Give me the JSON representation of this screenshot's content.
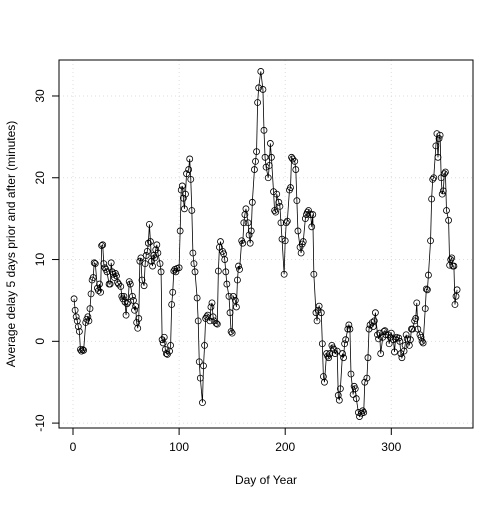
{
  "chart_data": {
    "type": "line",
    "x_label": "Day of Year",
    "y_label": "Average delay 5 days prior and after (minutes)",
    "x": [
      1,
      2,
      3,
      4,
      5,
      6,
      7,
      8,
      9,
      10,
      12,
      13,
      14,
      15,
      16,
      17,
      18,
      19,
      20,
      21,
      23,
      24,
      25,
      26,
      27,
      28,
      29,
      30,
      31,
      32,
      34,
      35,
      36,
      37,
      38,
      39,
      40,
      41,
      42,
      43,
      45,
      46,
      47,
      48,
      49,
      50,
      51,
      52,
      53,
      54,
      56,
      57,
      58,
      59,
      60,
      61,
      62,
      63,
      64,
      65,
      67,
      68,
      69,
      70,
      71,
      72,
      73,
      74,
      75,
      76,
      77,
      78,
      79,
      80,
      82,
      83,
      84,
      85,
      86,
      87,
      88,
      89,
      91,
      92,
      93,
      94,
      95,
      96,
      97,
      98,
      100,
      101,
      102,
      103,
      104,
      105,
      106,
      107,
      109,
      110,
      111,
      112,
      113,
      114,
      115,
      117,
      118,
      119,
      120,
      122,
      123,
      124,
      125,
      126,
      127,
      129,
      130,
      131,
      132,
      133,
      135,
      136,
      137,
      138,
      139,
      141,
      142,
      143,
      144,
      145,
      147,
      148,
      149,
      150,
      151,
      153,
      154,
      155,
      156,
      157,
      159,
      160,
      161,
      162,
      163,
      165,
      166,
      167,
      168,
      169,
      171,
      172,
      173,
      174,
      175,
      177,
      179,
      180,
      181,
      182,
      184,
      185,
      186,
      187,
      189,
      190,
      191,
      192,
      194,
      195,
      196,
      197,
      199,
      200,
      201,
      202,
      204,
      205,
      206,
      207,
      209,
      210,
      211,
      212,
      214,
      215,
      216,
      217,
      219,
      220,
      221,
      222,
      224,
      225,
      226,
      227,
      229,
      230,
      231,
      232,
      234,
      235,
      236,
      237,
      239,
      240,
      241,
      242,
      244,
      245,
      246,
      247,
      249,
      250,
      251,
      252,
      254,
      255,
      256,
      257,
      259,
      260,
      261,
      262,
      264,
      265,
      266,
      267,
      269,
      270,
      272,
      273,
      274,
      275,
      277,
      278,
      279,
      280,
      282,
      283,
      284,
      285,
      287,
      288,
      289,
      290,
      292,
      293,
      294,
      295,
      297,
      298,
      299,
      300,
      302,
      303,
      304,
      305,
      307,
      308,
      309,
      310,
      312,
      313,
      314,
      315,
      317,
      318,
      319,
      320,
      322,
      323,
      324,
      325,
      327,
      328,
      329,
      330,
      332,
      333,
      334,
      335,
      337,
      338,
      339,
      340,
      342,
      343,
      344,
      345,
      346,
      347,
      348,
      349,
      350,
      351,
      352,
      354,
      355,
      356,
      357,
      358,
      359,
      360,
      361,
      362
    ],
    "values": [
      5.2,
      3.8,
      3,
      2.5,
      1.8,
      1.2,
      -1,
      -1.2,
      -1,
      -1.1,
      2.3,
      2.7,
      3,
      2.5,
      4,
      5.8,
      7.5,
      7.8,
      9.6,
      9.5,
      6.5,
      6.2,
      7,
      6,
      11.7,
      11.8,
      9.5,
      9,
      8.8,
      8.5,
      7,
      7,
      9.6,
      8.5,
      8.2,
      7.8,
      8.3,
      8,
      7.2,
      7,
      6.7,
      5.5,
      5.2,
      5.5,
      4.8,
      3.2,
      4.6,
      4.8,
      7.3,
      7,
      5.5,
      5,
      3.8,
      4.3,
      2.3,
      1.6,
      2.8,
      9.8,
      10.2,
      7.5,
      6.8,
      9.5,
      10.5,
      11,
      12,
      14.3,
      12.2,
      9.8,
      9.2,
      10.5,
      10.2,
      11.2,
      11.8,
      10.8,
      9.5,
      8.5,
      0.2,
      -0.2,
      0.5,
      -1,
      -1.5,
      -1.6,
      -1.2,
      -0.5,
      4.5,
      6,
      8.6,
      8.8,
      8.5,
      8.9,
      9,
      13.5,
      18.5,
      19,
      17.5,
      16.2,
      18,
      20.5,
      21,
      22.3,
      19.8,
      16,
      10.8,
      9.5,
      8.5,
      5.3,
      2.5,
      -2.5,
      -4.5,
      -7.5,
      -3,
      -0.5,
      2.8,
      3,
      3.2,
      2.5,
      4.2,
      4.7,
      3,
      2.5,
      2.2,
      2.1,
      8.6,
      11.5,
      12.2,
      11,
      10.7,
      10,
      8.5,
      7,
      5.5,
      3.5,
      1.2,
      1,
      5.5,
      5,
      4.2,
      7.5,
      9.2,
      8.8,
      12.3,
      12,
      14.5,
      15.5,
      16.2,
      14.5,
      13,
      12,
      13.5,
      17,
      21,
      22,
      23.2,
      29.2,
      31,
      33,
      30.8,
      25.8,
      22.5,
      21.3,
      20,
      21.5,
      24.2,
      22.5,
      18.3,
      16,
      15.8,
      18,
      17,
      16.5,
      14.5,
      12.5,
      8.2,
      12.3,
      14.5,
      14.7,
      18.5,
      18.8,
      22.5,
      22.3,
      22,
      21,
      17.2,
      13.5,
      11.5,
      10.8,
      11.9,
      12.2,
      15,
      15.5,
      15.8,
      16,
      15.5,
      14,
      15.5,
      8.2,
      3.5,
      2.5,
      3.8,
      4.3,
      3.5,
      -0.3,
      -4.3,
      -5,
      -1.5,
      -1.8,
      -2,
      -1.5,
      -0.5,
      -0.8,
      -1,
      -1.5,
      -1.2,
      -6.6,
      -7.2,
      -5.8,
      -1.5,
      -2,
      -0.3,
      0.2,
      1.5,
      2,
      1.5,
      -4,
      -6.5,
      -5.5,
      -5.8,
      -7,
      -8.7,
      -9.2,
      -8.8,
      -8.5,
      -8.7,
      -5,
      -4.5,
      -2,
      1.5,
      2,
      2.3,
      1.8,
      2.5,
      3.5,
      0.8,
      0.3,
      1,
      -1.5,
      0.5,
      1.2,
      1.3,
      0.8,
      0.8,
      -0.3,
      0.5,
      1,
      0.2,
      -1.3,
      0.3,
      0.5,
      0.4,
      0,
      -1.5,
      -2,
      -1.2,
      -0.5,
      0.8,
      0.3,
      -0.5,
      0.2,
      1.5,
      1.5,
      2.5,
      2.8,
      4.7,
      1.5,
      0.8,
      0.5,
      0,
      -0.2,
      4,
      6.4,
      6.3,
      8.1,
      12.3,
      17.4,
      19.8,
      20,
      23.9,
      25.4,
      22.5,
      24.8,
      25.2,
      20,
      18,
      18.4,
      20.5,
      20.7,
      16,
      14.8,
      9.3,
      10,
      10.2,
      9.2,
      9.2,
      4.5,
      5.5,
      6.3
    ],
    "color": "#000000",
    "xlim": [
      -13.2,
      377
    ],
    "ylim": [
      -10.6,
      34.4
    ],
    "xticks": [
      0,
      100,
      200,
      300
    ],
    "yticks": [
      -10,
      0,
      10,
      20,
      30
    ],
    "grid": true
  }
}
